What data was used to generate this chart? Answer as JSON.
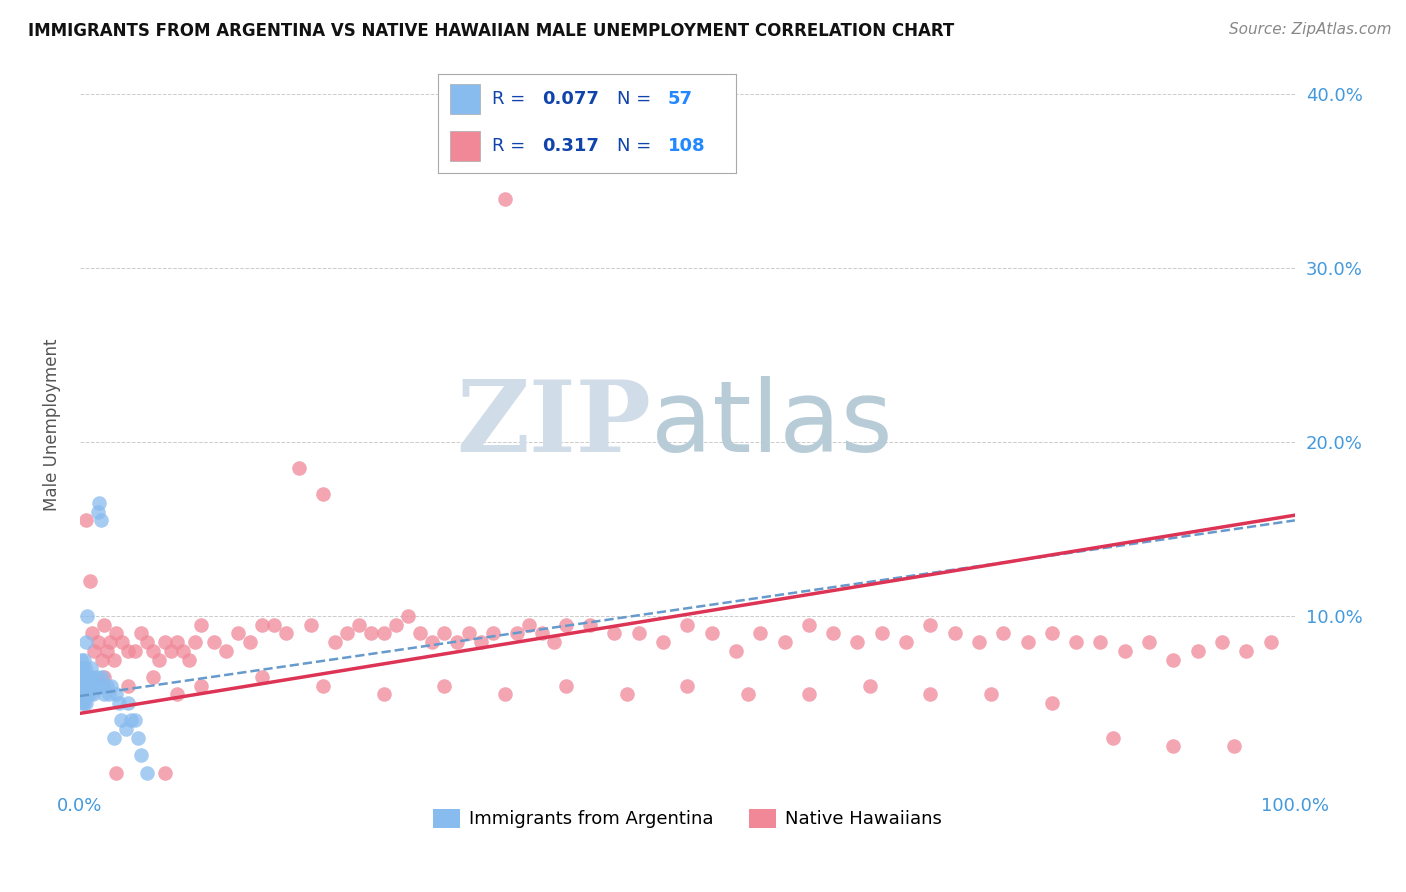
{
  "title": "IMMIGRANTS FROM ARGENTINA VS NATIVE HAWAIIAN MALE UNEMPLOYMENT CORRELATION CHART",
  "source": "Source: ZipAtlas.com",
  "ylabel": "Male Unemployment",
  "xlabel": "",
  "legend_label1": "Immigrants from Argentina",
  "legend_label2": "Native Hawaiians",
  "r1": 0.077,
  "n1": 57,
  "r2": 0.317,
  "n2": 108,
  "color1": "#88bbee",
  "color2": "#f08898",
  "trendline1_color": "#6699cc",
  "trendline2_color": "#dd3355",
  "bg_color": "#ffffff",
  "grid_color": "#cccccc",
  "axis_label_color": "#4499dd",
  "legend_r_color": "#1144aa",
  "legend_n_color": "#2288ff",
  "xlim": [
    0,
    1.0
  ],
  "ylim": [
    0,
    0.42
  ],
  "xtick_vals": [
    0.0,
    0.1,
    0.2,
    0.3,
    0.4,
    0.5,
    0.6,
    0.7,
    0.8,
    0.9,
    1.0
  ],
  "ytick_vals": [
    0.0,
    0.1,
    0.2,
    0.3,
    0.4
  ],
  "trendline1_x": [
    0.0,
    1.0
  ],
  "trendline1_y": [
    0.054,
    0.155
  ],
  "trendline2_x": [
    0.0,
    1.0
  ],
  "trendline2_y": [
    0.044,
    0.158
  ],
  "scatter1_x": [
    0.001,
    0.001,
    0.001,
    0.001,
    0.001,
    0.001,
    0.001,
    0.001,
    0.002,
    0.002,
    0.002,
    0.002,
    0.002,
    0.003,
    0.003,
    0.003,
    0.003,
    0.004,
    0.004,
    0.004,
    0.005,
    0.005,
    0.005,
    0.006,
    0.006,
    0.006,
    0.007,
    0.007,
    0.008,
    0.008,
    0.009,
    0.009,
    0.01,
    0.011,
    0.012,
    0.013,
    0.014,
    0.015,
    0.016,
    0.017,
    0.018,
    0.019,
    0.02,
    0.022,
    0.024,
    0.026,
    0.028,
    0.03,
    0.032,
    0.034,
    0.038,
    0.04,
    0.042,
    0.045,
    0.048,
    0.05,
    0.055
  ],
  "scatter1_y": [
    0.055,
    0.06,
    0.06,
    0.065,
    0.065,
    0.07,
    0.07,
    0.075,
    0.05,
    0.055,
    0.06,
    0.065,
    0.07,
    0.05,
    0.06,
    0.065,
    0.075,
    0.055,
    0.06,
    0.07,
    0.05,
    0.06,
    0.085,
    0.055,
    0.065,
    0.1,
    0.06,
    0.065,
    0.055,
    0.065,
    0.06,
    0.07,
    0.065,
    0.055,
    0.06,
    0.06,
    0.065,
    0.16,
    0.165,
    0.155,
    0.065,
    0.06,
    0.055,
    0.06,
    0.055,
    0.06,
    0.03,
    0.055,
    0.05,
    0.04,
    0.035,
    0.05,
    0.04,
    0.04,
    0.03,
    0.02,
    0.01
  ],
  "scatter2_x": [
    0.005,
    0.008,
    0.01,
    0.012,
    0.015,
    0.018,
    0.02,
    0.022,
    0.025,
    0.028,
    0.03,
    0.035,
    0.04,
    0.045,
    0.05,
    0.055,
    0.06,
    0.065,
    0.07,
    0.075,
    0.08,
    0.085,
    0.09,
    0.095,
    0.1,
    0.11,
    0.12,
    0.13,
    0.14,
    0.15,
    0.16,
    0.17,
    0.18,
    0.19,
    0.2,
    0.21,
    0.22,
    0.23,
    0.24,
    0.25,
    0.26,
    0.27,
    0.28,
    0.29,
    0.3,
    0.31,
    0.32,
    0.33,
    0.34,
    0.35,
    0.36,
    0.37,
    0.38,
    0.39,
    0.4,
    0.42,
    0.44,
    0.46,
    0.48,
    0.5,
    0.52,
    0.54,
    0.56,
    0.58,
    0.6,
    0.62,
    0.64,
    0.66,
    0.68,
    0.7,
    0.72,
    0.74,
    0.76,
    0.78,
    0.8,
    0.82,
    0.84,
    0.86,
    0.88,
    0.9,
    0.92,
    0.94,
    0.96,
    0.98,
    0.02,
    0.04,
    0.06,
    0.08,
    0.1,
    0.15,
    0.2,
    0.25,
    0.3,
    0.35,
    0.4,
    0.45,
    0.5,
    0.55,
    0.6,
    0.65,
    0.7,
    0.75,
    0.8,
    0.85,
    0.9,
    0.95,
    0.03,
    0.07
  ],
  "scatter2_y": [
    0.155,
    0.12,
    0.09,
    0.08,
    0.085,
    0.075,
    0.095,
    0.08,
    0.085,
    0.075,
    0.09,
    0.085,
    0.08,
    0.08,
    0.09,
    0.085,
    0.08,
    0.075,
    0.085,
    0.08,
    0.085,
    0.08,
    0.075,
    0.085,
    0.095,
    0.085,
    0.08,
    0.09,
    0.085,
    0.095,
    0.095,
    0.09,
    0.185,
    0.095,
    0.17,
    0.085,
    0.09,
    0.095,
    0.09,
    0.09,
    0.095,
    0.1,
    0.09,
    0.085,
    0.09,
    0.085,
    0.09,
    0.085,
    0.09,
    0.34,
    0.09,
    0.095,
    0.09,
    0.085,
    0.095,
    0.095,
    0.09,
    0.09,
    0.085,
    0.095,
    0.09,
    0.08,
    0.09,
    0.085,
    0.095,
    0.09,
    0.085,
    0.09,
    0.085,
    0.095,
    0.09,
    0.085,
    0.09,
    0.085,
    0.09,
    0.085,
    0.085,
    0.08,
    0.085,
    0.075,
    0.08,
    0.085,
    0.08,
    0.085,
    0.065,
    0.06,
    0.065,
    0.055,
    0.06,
    0.065,
    0.06,
    0.055,
    0.06,
    0.055,
    0.06,
    0.055,
    0.06,
    0.055,
    0.055,
    0.06,
    0.055,
    0.055,
    0.05,
    0.03,
    0.025,
    0.025,
    0.01,
    0.01
  ]
}
